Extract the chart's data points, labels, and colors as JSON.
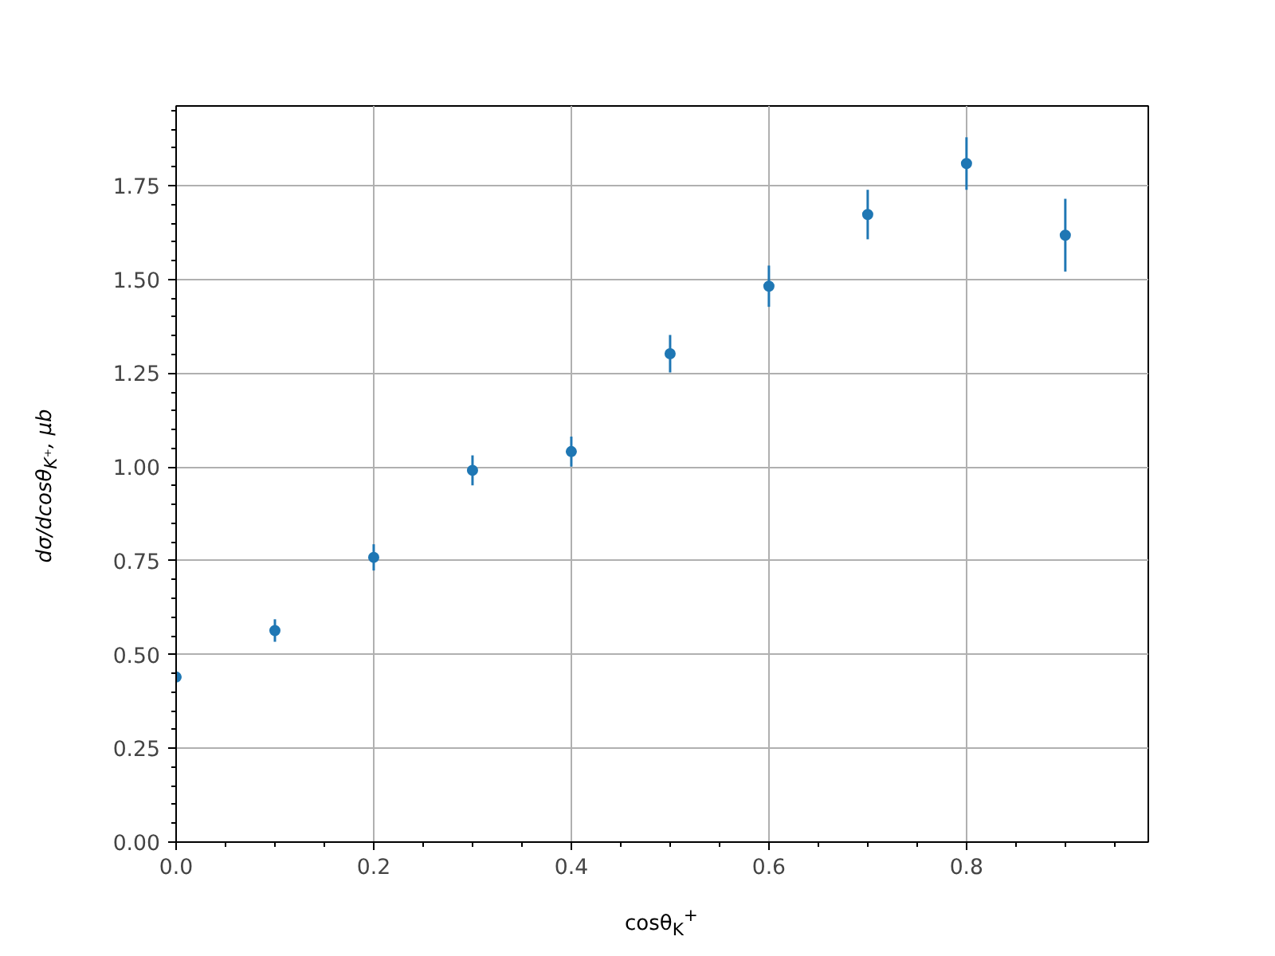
{
  "chart_data": {
    "type": "scatter",
    "xlabel": "cosθ$_{K}$$^{+}$",
    "ylabel": "dσ/dcosθ$_{K⁺}$, μb",
    "x": [
      0,
      0.1,
      0.2,
      0.3,
      0.4,
      0.5,
      0.6,
      0.7,
      0.8,
      0.9
    ],
    "series": [
      {
        "color": "#1f77b4",
        "values": [
          0.44,
          0.564,
          0.759,
          0.991,
          1.041,
          1.302,
          1.482,
          1.673,
          1.809,
          1.618
        ],
        "errors": [
          null,
          0.03,
          0.035,
          0.04,
          0.04,
          0.05,
          0.055,
          0.066,
          0.07,
          0.097
        ]
      }
    ],
    "xlim": [
      0,
      0.984
    ],
    "ylim": [
      0,
      1.9625
    ],
    "xticks": [
      {
        "value": 0,
        "label": "0.0"
      },
      {
        "value": 0.2,
        "label": "0.2"
      },
      {
        "value": 0.4,
        "label": "0.4"
      },
      {
        "value": 0.6,
        "label": "0.6"
      },
      {
        "value": 0.8,
        "label": "0.8"
      }
    ],
    "yticks": [
      {
        "value": 0,
        "label": "0.00"
      },
      {
        "value": 0.25,
        "label": "0.25"
      },
      {
        "value": 0.5,
        "label": "0.50"
      },
      {
        "value": 0.75,
        "label": "0.75"
      },
      {
        "value": 1,
        "label": "1.00"
      },
      {
        "value": 1.25,
        "label": "1.25"
      },
      {
        "value": 1.5,
        "label": "1.50"
      },
      {
        "value": 1.75,
        "label": "1.75"
      }
    ],
    "grid": true,
    "marker": "circle"
  }
}
